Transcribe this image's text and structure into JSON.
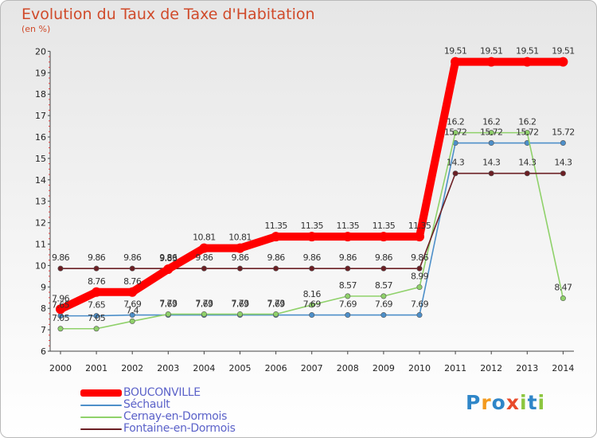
{
  "chart_data": {
    "type": "line",
    "title": "Evolution du Taux de Taxe d'Habitation",
    "ylabel": "(en %)",
    "x": [
      "2000",
      "2001",
      "2002",
      "2003",
      "2004",
      "2005",
      "2006",
      "2007",
      "2008",
      "2009",
      "2010",
      "2011",
      "2012",
      "2013",
      "2014"
    ],
    "ylim": [
      6,
      20
    ],
    "yticks": [
      6,
      7,
      8,
      9,
      10,
      11,
      12,
      13,
      14,
      15,
      16,
      17,
      18,
      19,
      20
    ],
    "grid": false,
    "legend_position": "bottom-left",
    "series": [
      {
        "name": "BOUCONVILLE",
        "color": "#ff0000",
        "thick": true,
        "values": [
          7.96,
          8.76,
          8.76,
          9.83,
          10.81,
          10.81,
          11.35,
          11.35,
          11.35,
          11.35,
          11.35,
          19.51,
          19.51,
          19.51,
          19.51
        ],
        "labels": [
          "7.96",
          "8.76",
          "8.76",
          "9.83",
          "10.81",
          "10.81",
          "11.35",
          "11.35",
          "11.35",
          "11.35",
          "11.35",
          "19.51",
          "19.51",
          "19.51",
          "19.51"
        ]
      },
      {
        "name": "Séchault",
        "color": "#4d8fc9",
        "thick": false,
        "values": [
          7.65,
          7.65,
          7.69,
          7.69,
          7.69,
          7.69,
          7.69,
          7.69,
          7.69,
          7.69,
          7.69,
          15.72,
          15.72,
          15.72,
          15.72
        ],
        "labels": [
          "7.65",
          "7.65",
          "7.69",
          "7.69",
          "7.69",
          "7.69",
          "7.69",
          "7.69",
          "7.69",
          "7.69",
          "7.69",
          "15.72",
          "15.72",
          "15.72",
          "15.72"
        ]
      },
      {
        "name": "Cernay-en-Dormois",
        "color": "#8fd16a",
        "thick": false,
        "values": [
          7.05,
          7.05,
          7.4,
          7.73,
          7.73,
          7.73,
          7.73,
          8.16,
          8.57,
          8.57,
          8.99,
          16.2,
          16.2,
          16.2,
          8.47
        ],
        "labels": [
          "7.05",
          "7.05",
          "7.4",
          "7.73",
          "7.73",
          "7.73",
          "7.73",
          "8.16",
          "8.57",
          "8.57",
          "8.99",
          "16.2",
          "16.2",
          "16.2",
          "8.47"
        ]
      },
      {
        "name": "Fontaine-en-Dormois",
        "color": "#6b1f24",
        "thick": false,
        "values": [
          9.86,
          9.86,
          9.86,
          9.86,
          9.86,
          9.86,
          9.86,
          9.86,
          9.86,
          9.86,
          9.86,
          14.3,
          14.3,
          14.3,
          14.3
        ],
        "labels": [
          "9.86",
          "9.86",
          "9.86",
          "9.86",
          "9.86",
          "9.86",
          "9.86",
          "9.86",
          "9.86",
          "9.86",
          "9.86",
          "14.3",
          "14.3",
          "14.3",
          "14.3"
        ]
      }
    ]
  },
  "legend": {
    "items": [
      "BOUCONVILLE",
      "Séchault",
      "Cernay-en-Dormois",
      "Fontaine-en-Dormois"
    ]
  },
  "logo": {
    "letters": [
      "P",
      "r",
      "o",
      "x",
      "i",
      "t",
      "i"
    ],
    "colors": [
      "#2f86c8",
      "#f39a1e",
      "#2f86c8",
      "#e84a2a",
      "#8cc63f",
      "#2f86c8",
      "#8cc63f"
    ]
  }
}
